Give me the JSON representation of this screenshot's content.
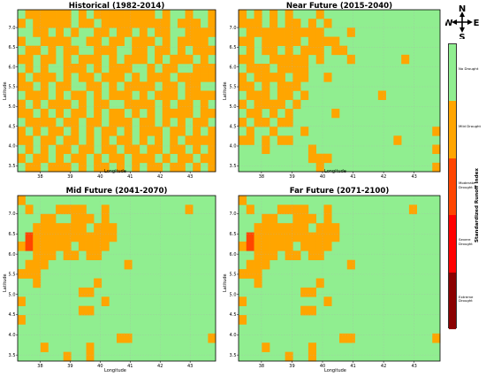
{
  "panels": [
    {
      "id": "historical",
      "title": "Historical (1982-2014)"
    },
    {
      "id": "near",
      "title": "Near Future (2015-2040)"
    },
    {
      "id": "mid",
      "title": "Mid Future (2041-2070)"
    },
    {
      "id": "far",
      "title": "Far Future (2071-2100)"
    }
  ],
  "axes": {
    "xlabel": "Longitude",
    "ylabel": "Latitude",
    "xticks": [
      "38",
      "39",
      "40",
      "41",
      "42",
      "43"
    ],
    "yticks": [
      "3.5",
      "4.0",
      "4.5",
      "5.0",
      "5.5",
      "6.0",
      "6.5",
      "7.0"
    ]
  },
  "compass": {
    "n": "N",
    "s": "S",
    "e": "E",
    "w": "W"
  },
  "colorbar": {
    "title": "Standardized Runoff Index",
    "classes": [
      {
        "label": "No Drought",
        "color": "#90ee90"
      },
      {
        "label": "Mild Drought",
        "color": "#ffa500"
      },
      {
        "label": "Moderate Drought",
        "color": "#ff4500"
      },
      {
        "label": "Severe Drought",
        "color": "#ff0000"
      },
      {
        "label": "Extreme Drought",
        "color": "#8b0000"
      }
    ]
  },
  "grid": {
    "lon_range": [
      37.25,
      43.85
    ],
    "lat_range": [
      3.35,
      7.45
    ],
    "cols": 26,
    "rows": 18,
    "legend": {
      ".": 0,
      "o": 1,
      "r": 2
    }
  },
  "chart_data": {
    "type": "heatmap",
    "variable": "Standardized Runoff Index drought class",
    "categories": [
      "No Drought",
      "Mild Drought",
      "Moderate Drought",
      "Severe Drought",
      "Extreme Drought"
    ],
    "x_range": [
      37.25,
      43.85
    ],
    "y_range": [
      3.35,
      7.45
    ],
    "maps": {
      "historical": [
        ".oooooo.o.oooooooo.o..o..o",
        "o.ooooo.oo.ooooooooo.ooo.o",
        "..oo.o.o..oo.oo.o.oo..oooo",
        "o..oooo..oo.oo.ooo.o.oooo.",
        ".oo.o.oo..ooo..oo.oo.o.ooo",
        "oo.oo.o.ooo.o.ooo.o.ooo.o.",
        ".o.o..ooo.o.ooo..o.oo..ooo",
        "o.ooo.o.oo.ooo.o.ooo.ooooo",
        "oo.o.oo..oo.o.oooo.oo.oo..",
        ".ooo.o.oo.o.ooo.o.ooo.oooo",
        "o.o.ooo.o.oo..oooo.o.oo.o.",
        "oo.o.o.oo.o.oo.o.o.oooo.oo",
        ".oooo.oo.oo.ooo.oo.o.o.oo.",
        "o.o.oo.o.o.oo.o.ooo.oo.o.o",
        "oo.oo.oo.o.o.oo.o.o.o.oooo",
        ".o.o.oo.oo.oo.oo.oo.oo.o.o",
        "o.oo.o.oo.o.oo.ooo.o.oo.oo",
        ".oo.ooo.o.oo.o.o.oo.oo.o.o"
      ],
      "near": [
        "o.o.o.o...o...............",
        "ooo.o.oo.o.o..............",
        ".oooooooooo...o...........",
        "oo.ooooo.oooo.............",
        ".o.oo.o.ooo.oo............",
        "oo..ooooo.o...o......o....",
        ".ooo.oooo.................",
        "o.oooo.oo..o..............",
        "oo.o.ooo..................",
        ".ooo.oo.o.........o.......",
        "o.oooo.o..................",
        ".oo.o.o.....o.............",
        "o.oo.oo...................",
        ".o..o...o................o",
        "oo.o.oo.............o.....",
        "...o.....o...............o",
        ".........ooo..............",
        "..........o..............o"
      ],
      "mid": [
        "o.........................",
        ".o...oooo..o..........o...",
        "...oo..ooo.o..............",
        "..ooooooo.ooo.............",
        ".rooooooooooo.............",
        "orooooo.oooo..............",
        "..ooo.oo.oo...............",
        ".ooo..........o...........",
        "ooo.......................",
        "..o.......o...............",
        "........oo................",
        "o..........o..............",
        "........oo................",
        "o.........................",
        "..........................",
        ".............oo..........o",
        "...o.....o................",
        "......o..o................"
      ],
      "far": [
        "o.........................",
        ".o...oooo..o..........o...",
        "...oo..ooo.o..............",
        "..ooooooo.ooo.............",
        ".rooooooooooo.............",
        "orooooo.oooo..............",
        "..ooo.oo.oo...............",
        ".ooo..........o...........",
        "ooo.......................",
        "..o.......o...............",
        "........oo................",
        "o..........o..............",
        "........oo................",
        "o.........................",
        "..........................",
        ".............oo..........o",
        "...o.....o................",
        "......o..o................"
      ]
    }
  }
}
